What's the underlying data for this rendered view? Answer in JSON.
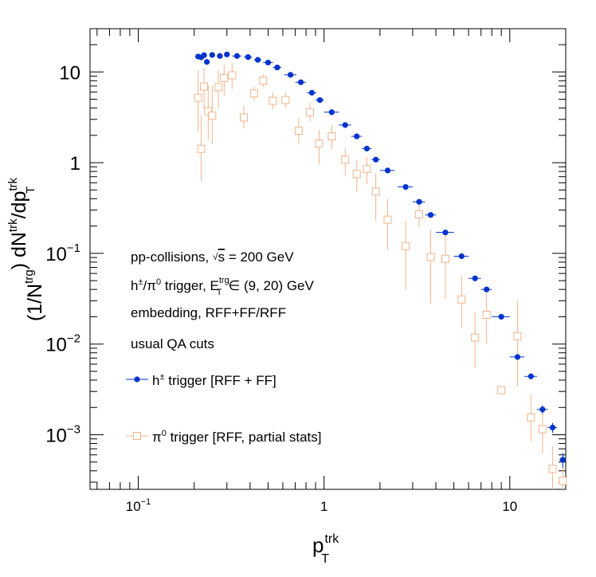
{
  "chart_data": {
    "type": "scatter",
    "title": "",
    "xlabel": {
      "base": "p",
      "sup": "trk",
      "sub": "T"
    },
    "ylabel": {
      "text": "(1/N^trg) dN^trk/dp_T^trk"
    },
    "x_scale": "log",
    "y_scale": "log",
    "xlim": [
      0.055,
      20
    ],
    "ylim": [
      0.00025,
      30
    ],
    "x_ticks": [
      {
        "value": 0.1,
        "base": "10",
        "exp": "−1"
      },
      {
        "value": 1,
        "base": "1",
        "exp": ""
      },
      {
        "value": 10,
        "base": "10",
        "exp": ""
      }
    ],
    "y_ticks": [
      {
        "value": 10,
        "base": "10",
        "exp": ""
      },
      {
        "value": 1,
        "base": "1",
        "exp": ""
      },
      {
        "value": 0.1,
        "base": "10",
        "exp": "−1"
      },
      {
        "value": 0.01,
        "base": "10",
        "exp": "−2"
      },
      {
        "value": 0.001,
        "base": "10",
        "exp": "−3"
      }
    ],
    "grid": false,
    "legend_position": "left-middle",
    "annotations": [
      {
        "pre": "pp-collisions, ",
        "sqrt": "s",
        "post": " = 200 GeV"
      },
      {
        "line": "h±/π0 trigger, E_T^trg ∈ (9, 20) GeV"
      },
      {
        "text": "embedding, RFF+FF/RFF"
      },
      {
        "text": "usual QA cuts"
      }
    ],
    "series": [
      {
        "name": "h± trigger [RFF + FF]",
        "legend_base": "h",
        "legend_sup": "±",
        "legend_rest": " trigger [RFF + FF]",
        "color": "#0033cc",
        "marker": "filled-circle",
        "points": [
          {
            "x": 0.21,
            "y": 14.8,
            "dxl": 0.005,
            "dxh": 0.005,
            "yerr": 0.3
          },
          {
            "x": 0.218,
            "y": 14.5,
            "dxl": 0.004,
            "dxh": 0.004,
            "yerr": 0.3
          },
          {
            "x": 0.226,
            "y": 15.3,
            "dxl": 0.004,
            "dxh": 0.004,
            "yerr": 0.3
          },
          {
            "x": 0.234,
            "y": 12.9,
            "dxl": 0.004,
            "dxh": 0.004,
            "yerr": 0.4
          },
          {
            "x": 0.25,
            "y": 15.4,
            "dxl": 0.008,
            "dxh": 0.008,
            "yerr": 0.3
          },
          {
            "x": 0.275,
            "y": 15.0,
            "dxl": 0.01,
            "dxh": 0.01,
            "yerr": 0.3
          },
          {
            "x": 0.3,
            "y": 15.6,
            "dxl": 0.01,
            "dxh": 0.01,
            "yerr": 0.3
          },
          {
            "x": 0.34,
            "y": 15.0,
            "dxl": 0.02,
            "dxh": 0.02,
            "yerr": 0.3
          },
          {
            "x": 0.39,
            "y": 14.6,
            "dxl": 0.02,
            "dxh": 0.02,
            "yerr": 0.3
          },
          {
            "x": 0.44,
            "y": 13.6,
            "dxl": 0.02,
            "dxh": 0.02,
            "yerr": 0.3
          },
          {
            "x": 0.5,
            "y": 12.7,
            "dxl": 0.03,
            "dxh": 0.03,
            "yerr": 0.3
          },
          {
            "x": 0.56,
            "y": 11.2,
            "dxl": 0.03,
            "dxh": 0.03,
            "yerr": 0.3
          },
          {
            "x": 0.66,
            "y": 9.3,
            "dxl": 0.05,
            "dxh": 0.05,
            "yerr": 0.2
          },
          {
            "x": 0.75,
            "y": 7.7,
            "dxl": 0.05,
            "dxh": 0.05,
            "yerr": 0.2
          },
          {
            "x": 0.86,
            "y": 5.9,
            "dxl": 0.05,
            "dxh": 0.05,
            "yerr": 0.15
          },
          {
            "x": 0.95,
            "y": 4.9,
            "dxl": 0.05,
            "dxh": 0.05,
            "yerr": 0.12
          },
          {
            "x": 1.1,
            "y": 3.6,
            "dxl": 0.1,
            "dxh": 0.1,
            "yerr": 0.08
          },
          {
            "x": 1.3,
            "y": 2.6,
            "dxl": 0.1,
            "dxh": 0.1,
            "yerr": 0.06
          },
          {
            "x": 1.5,
            "y": 1.95,
            "dxl": 0.1,
            "dxh": 0.1,
            "yerr": 0.05
          },
          {
            "x": 1.7,
            "y": 1.43,
            "dxl": 0.1,
            "dxh": 0.1,
            "yerr": 0.04
          },
          {
            "x": 1.9,
            "y": 1.08,
            "dxl": 0.1,
            "dxh": 0.1,
            "yerr": 0.03
          },
          {
            "x": 2.2,
            "y": 0.82,
            "dxl": 0.2,
            "dxh": 0.2,
            "yerr": 0.02
          },
          {
            "x": 2.75,
            "y": 0.54,
            "dxl": 0.25,
            "dxh": 0.25,
            "yerr": 0.015
          },
          {
            "x": 3.25,
            "y": 0.37,
            "dxl": 0.25,
            "dxh": 0.25,
            "yerr": 0.01
          },
          {
            "x": 3.75,
            "y": 0.265,
            "dxl": 0.25,
            "dxh": 0.25,
            "yerr": 0.008
          },
          {
            "x": 4.5,
            "y": 0.17,
            "dxl": 0.5,
            "dxh": 0.5,
            "yerr": 0.005
          },
          {
            "x": 5.5,
            "y": 0.093,
            "dxl": 0.5,
            "dxh": 0.5,
            "yerr": 0.003
          },
          {
            "x": 6.5,
            "y": 0.053,
            "dxl": 0.5,
            "dxh": 0.5,
            "yerr": 0.002
          },
          {
            "x": 7.5,
            "y": 0.04,
            "dxl": 0.5,
            "dxh": 0.5,
            "yerr": 0.0015
          },
          {
            "x": 9.0,
            "y": 0.02,
            "dxl": 1.0,
            "dxh": 1.0,
            "yerr": 0.001
          },
          {
            "x": 11.0,
            "y": 0.0072,
            "dxl": 1.0,
            "dxh": 1.0,
            "yerr": 0.0004
          },
          {
            "x": 13.0,
            "y": 0.0044,
            "dxl": 1.0,
            "dxh": 1.0,
            "yerr": 0.0003
          },
          {
            "x": 15.0,
            "y": 0.0019,
            "dxl": 1.0,
            "dxh": 1.0,
            "yerr": 0.0002
          },
          {
            "x": 17.0,
            "y": 0.0012,
            "dxl": 1.0,
            "dxh": 1.0,
            "yerr": 0.00015
          },
          {
            "x": 19.3,
            "y": 0.00053,
            "dxl": 0.8,
            "dxh": 0.7,
            "yerr": 0.0001
          }
        ]
      },
      {
        "name": "π0 trigger [RFF, partial stats]",
        "legend_base": "π",
        "legend_sup": "0",
        "legend_rest": " trigger [RFF, partial stats]",
        "color": "#f0b48a",
        "marker": "open-square",
        "points": [
          {
            "x": 0.21,
            "y": 5.2,
            "yl": 2.2,
            "yh": 10.5
          },
          {
            "x": 0.218,
            "y": 1.42,
            "yl": 0.63,
            "yh": 3.3
          },
          {
            "x": 0.226,
            "y": 6.9,
            "yl": 4.0,
            "yh": 11.0
          },
          {
            "x": 0.238,
            "y": 3.7,
            "yl": 1.8,
            "yh": 7.2
          },
          {
            "x": 0.25,
            "y": 3.3,
            "yl": 1.6,
            "yh": 7.0
          },
          {
            "x": 0.27,
            "y": 6.8,
            "yl": 4.0,
            "yh": 10.5
          },
          {
            "x": 0.29,
            "y": 8.6,
            "yl": 5.5,
            "yh": 12.0
          },
          {
            "x": 0.32,
            "y": 9.2,
            "yl": 6.5,
            "yh": 12.5
          },
          {
            "x": 0.37,
            "y": 3.15,
            "yl": 2.4,
            "yh": 4.2
          },
          {
            "x": 0.42,
            "y": 5.8,
            "yl": 4.8,
            "yh": 7.0
          },
          {
            "x": 0.47,
            "y": 8.0,
            "yl": 6.8,
            "yh": 9.5
          },
          {
            "x": 0.53,
            "y": 4.8,
            "yl": 3.9,
            "yh": 5.9
          },
          {
            "x": 0.62,
            "y": 4.9,
            "yl": 4.0,
            "yh": 6.0
          },
          {
            "x": 0.73,
            "y": 2.25,
            "yl": 1.6,
            "yh": 3.1
          },
          {
            "x": 0.84,
            "y": 3.6,
            "yl": 2.8,
            "yh": 4.6
          },
          {
            "x": 0.94,
            "y": 1.62,
            "yl": 0.95,
            "yh": 2.3
          },
          {
            "x": 1.1,
            "y": 1.95,
            "yl": 1.4,
            "yh": 2.6
          },
          {
            "x": 1.3,
            "y": 1.08,
            "yl": 0.72,
            "yh": 1.45
          },
          {
            "x": 1.5,
            "y": 0.75,
            "yl": 0.48,
            "yh": 1.05
          },
          {
            "x": 1.7,
            "y": 0.85,
            "yl": 0.58,
            "yh": 1.15
          },
          {
            "x": 1.9,
            "y": 0.48,
            "yl": 0.23,
            "yh": 0.76
          },
          {
            "x": 2.2,
            "y": 0.235,
            "yl": 0.11,
            "yh": 0.4
          },
          {
            "x": 2.75,
            "y": 0.12,
            "yl": 0.04,
            "yh": 0.23
          },
          {
            "x": 3.25,
            "y": 0.27,
            "yl": 0.195,
            "yh": 0.37
          },
          {
            "x": 3.75,
            "y": 0.091,
            "yl": 0.028,
            "yh": 0.18
          },
          {
            "x": 4.5,
            "y": 0.087,
            "yl": 0.032,
            "yh": 0.16
          },
          {
            "x": 5.5,
            "y": 0.031,
            "yl": 0.015,
            "yh": 0.058
          },
          {
            "x": 6.5,
            "y": 0.0118,
            "yl": 0.0055,
            "yh": 0.022
          },
          {
            "x": 7.5,
            "y": 0.021,
            "yl": 0.01,
            "yh": 0.038
          },
          {
            "x": 9.0,
            "y": 0.0031,
            "yl": 0.0029,
            "yh": 0.0033
          },
          {
            "x": 11.0,
            "y": 0.0122,
            "yl": 0.0034,
            "yh": 0.03
          },
          {
            "x": 13.0,
            "y": 0.00155,
            "yl": 0.00085,
            "yh": 0.0028
          },
          {
            "x": 15.0,
            "y": 0.00115,
            "yl": 0.00062,
            "yh": 0.0021
          },
          {
            "x": 17.0,
            "y": 0.00042,
            "yl": 0.00025,
            "yh": 0.00075
          },
          {
            "x": 19.3,
            "y": 0.00031,
            "yl": 0.00025,
            "yh": 0.00052
          }
        ]
      }
    ]
  }
}
